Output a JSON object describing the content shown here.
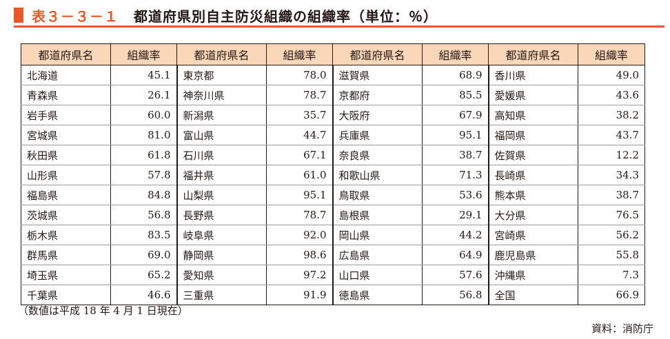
{
  "header": {
    "label": "表３－３－１",
    "title": "都道府県別自主防災組織の組織率（単位：％）",
    "accent_color": "#e8562a"
  },
  "table": {
    "header_color": "#f9d7b8",
    "columns": [
      "都道府県名",
      "組織率",
      "都道府県名",
      "組織率",
      "都道府県名",
      "組織率",
      "都道府県名",
      "組織率"
    ],
    "rows": [
      [
        "北海道",
        "45.1",
        "東京都",
        "78.0",
        "滋賀県",
        "68.9",
        "香川県",
        "49.0"
      ],
      [
        "青森県",
        "26.1",
        "神奈川県",
        "78.7",
        "京都府",
        "85.5",
        "愛媛県",
        "43.6"
      ],
      [
        "岩手県",
        "60.0",
        "新潟県",
        "35.7",
        "大阪府",
        "67.9",
        "高知県",
        "38.2"
      ],
      [
        "宮城県",
        "81.0",
        "富山県",
        "44.7",
        "兵庫県",
        "95.1",
        "福岡県",
        "43.7"
      ],
      [
        "秋田県",
        "61.8",
        "石川県",
        "67.1",
        "奈良県",
        "38.7",
        "佐賀県",
        "12.2"
      ],
      [
        "山形県",
        "57.8",
        "福井県",
        "61.0",
        "和歌山県",
        "71.3",
        "長崎県",
        "34.3"
      ],
      [
        "福島県",
        "84.8",
        "山梨県",
        "95.1",
        "鳥取県",
        "53.6",
        "熊本県",
        "38.7"
      ],
      [
        "茨城県",
        "56.8",
        "長野県",
        "78.7",
        "島根県",
        "29.1",
        "大分県",
        "76.5"
      ],
      [
        "栃木県",
        "83.5",
        "岐阜県",
        "92.0",
        "岡山県",
        "44.2",
        "宮崎県",
        "56.2"
      ],
      [
        "群馬県",
        "69.0",
        "静岡県",
        "98.6",
        "広島県",
        "64.9",
        "鹿児島県",
        "55.8"
      ],
      [
        "埼玉県",
        "65.2",
        "愛知県",
        "97.2",
        "山口県",
        "57.6",
        "沖縄県",
        "7.3"
      ],
      [
        "千葉県",
        "46.6",
        "三重県",
        "91.9",
        "徳島県",
        "56.8",
        "全国",
        "66.9"
      ]
    ]
  },
  "footer": {
    "note": "（数値は平成 18 年 4 月 1 日現在）",
    "source": "資料：消防庁"
  }
}
